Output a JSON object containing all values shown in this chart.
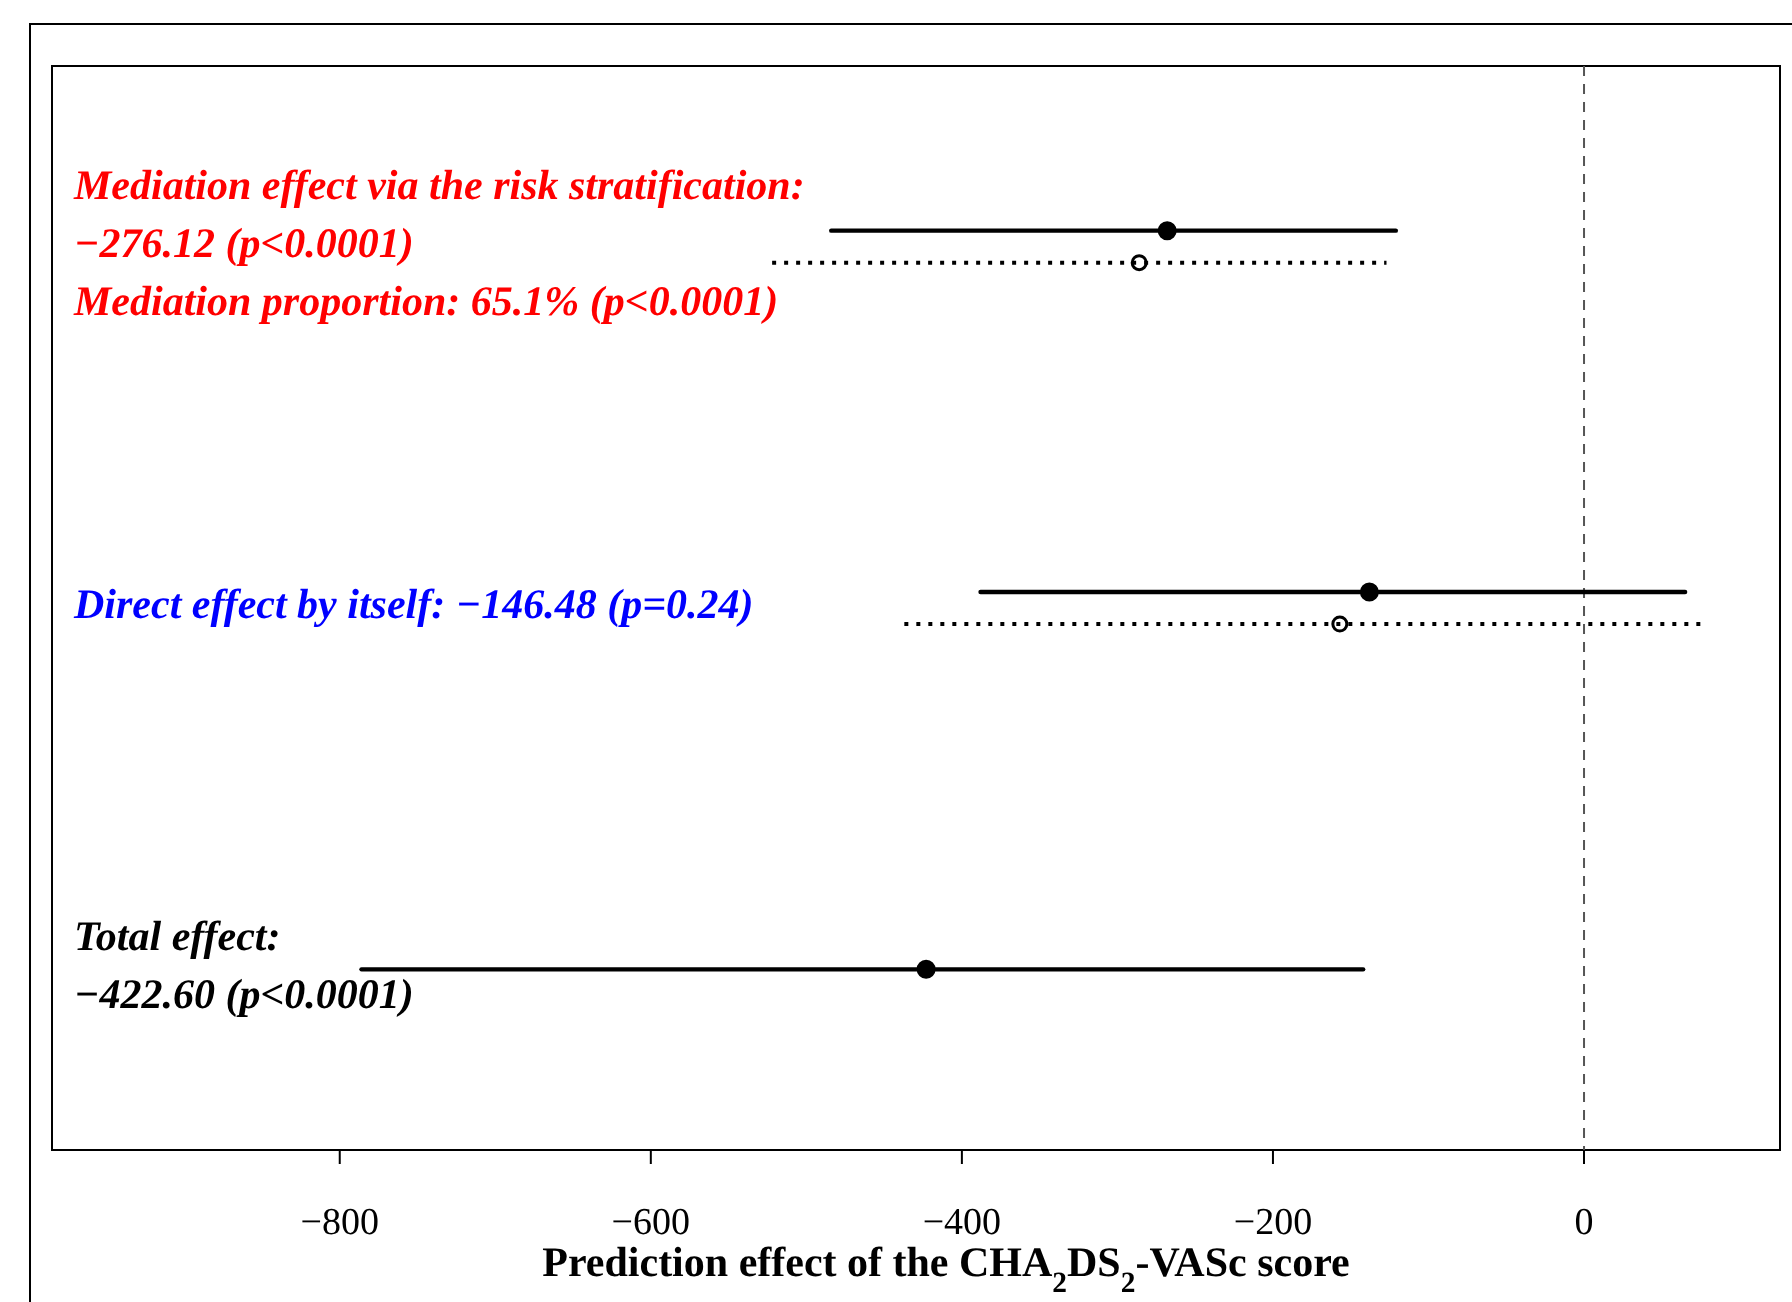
{
  "chart_data": {
    "type": "scatter",
    "orientation": "horizontal",
    "xlabel": "Prediction effect of the CHA$_{2}$DS$_{2}$-VASc score",
    "categories": [
      "Mediation effect via the risk stratification:\n−276.12 (p<0.0001)\nMediation proportion: 65.1% (p<0.0001)",
      "Direct effect by itself: −146.48 (p=0.24)",
      "Total effect:\n−422.60 (p<0.0001)"
    ],
    "xlim": [
      -985,
      126
    ],
    "xticks": [
      {
        "value": -800,
        "label": "−800"
      },
      {
        "value": -600,
        "label": "−600"
      },
      {
        "value": -400,
        "label": "−400"
      },
      {
        "value": -200,
        "label": "−200"
      },
      0
    ],
    "series": [
      {
        "color": "#000000",
        "line_style": "solid",
        "values": [
          -268,
          -138,
          -423
        ],
        "errors": [
          [
            -484,
            -121
          ],
          [
            -388,
            65
          ],
          [
            -786,
            -142
          ]
        ]
      },
      {
        "color": "#000000",
        "line_style": "dotted",
        "values": [
          -286,
          -157,
          null
        ],
        "errors": [
          [
            -522,
            -127
          ],
          [
            -437,
            75
          ],
          null
        ]
      }
    ],
    "ref_lines": [
      {
        "axis": "x",
        "value": 0,
        "line_style": "dashed"
      }
    ],
    "marker": "circle",
    "grid": false
  }
}
